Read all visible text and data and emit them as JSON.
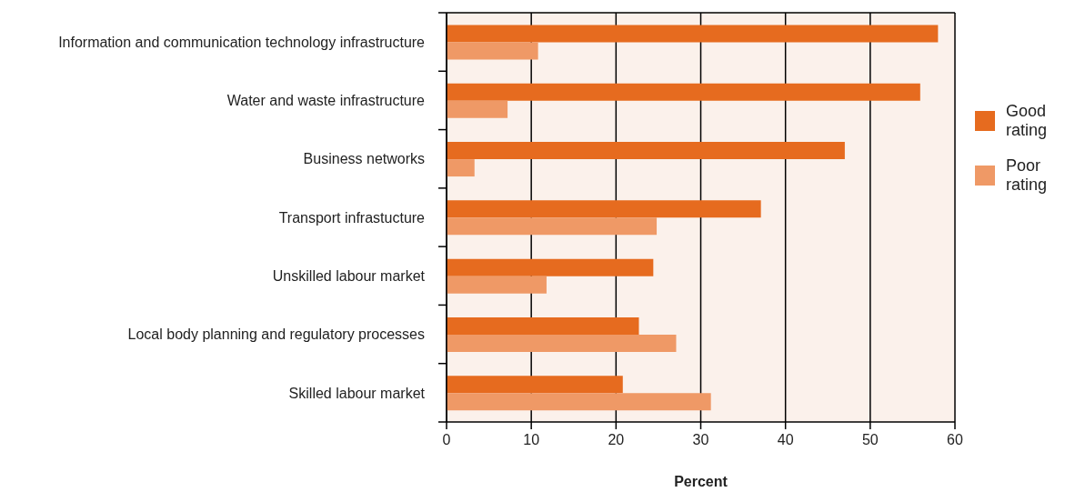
{
  "chart_data": {
    "type": "bar",
    "orientation": "horizontal",
    "xlabel": "Percent",
    "categories": [
      "Information and communication technology infrastructure",
      "Water and waste infrastructure",
      "Business networks",
      "Transport infrastucture",
      "Unskilled labour market",
      "Local body planning and regulatory processes",
      "Skilled labour market"
    ],
    "series": [
      {
        "name": "Good rating",
        "color": "#e66b1f",
        "values": [
          58.0,
          55.9,
          47.0,
          37.1,
          24.4,
          22.7,
          20.8
        ]
      },
      {
        "name": "Poor rating",
        "color": "#ef9966",
        "values": [
          10.8,
          7.2,
          3.3,
          24.8,
          11.8,
          27.1,
          31.2
        ]
      }
    ],
    "xlim": [
      0,
      60
    ],
    "xticks": [
      0,
      10,
      20,
      30,
      40,
      50,
      60
    ],
    "grid": "x",
    "legend": "right"
  }
}
